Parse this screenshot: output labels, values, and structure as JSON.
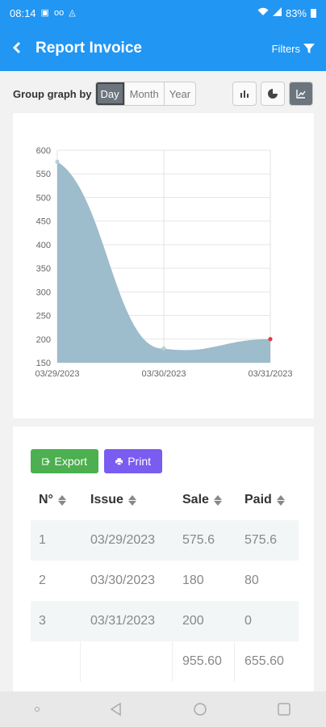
{
  "status_bar": {
    "time": "08:14",
    "battery": "83%"
  },
  "app_bar": {
    "title": "Report Invoice",
    "filters_label": "Filters"
  },
  "controls": {
    "group_label": "Group graph by",
    "options": [
      "Day",
      "Month",
      "Year"
    ],
    "selected": "Day",
    "view_icons": [
      "bar-chart-icon",
      "pie-chart-icon",
      "line-chart-icon"
    ],
    "active_view": "line-chart-icon"
  },
  "colors": {
    "primary": "#2196f3",
    "area_fill": "#9dbccc",
    "export": "#4caf50",
    "print": "#7b5cf0",
    "highlight_point": "#e53935"
  },
  "chart_data": {
    "type": "area",
    "x": [
      "03/29/2023",
      "03/30/2023",
      "03/31/2023"
    ],
    "values": [
      575.6,
      180,
      200
    ],
    "ylim": [
      150,
      600
    ],
    "yticks": [
      150,
      200,
      250,
      300,
      350,
      400,
      450,
      500,
      550,
      600
    ],
    "grid": true,
    "legend": "none"
  },
  "actions": {
    "export_label": "Export",
    "print_label": "Print"
  },
  "table": {
    "headers": [
      "N°",
      "Issue",
      "Sale",
      "Paid"
    ],
    "rows": [
      [
        "1",
        "03/29/2023",
        "575.6",
        "575.6"
      ],
      [
        "2",
        "03/30/2023",
        "180",
        "80"
      ],
      [
        "3",
        "03/31/2023",
        "200",
        "0"
      ]
    ],
    "totals": [
      "",
      "",
      "955.60",
      "655.60"
    ]
  }
}
